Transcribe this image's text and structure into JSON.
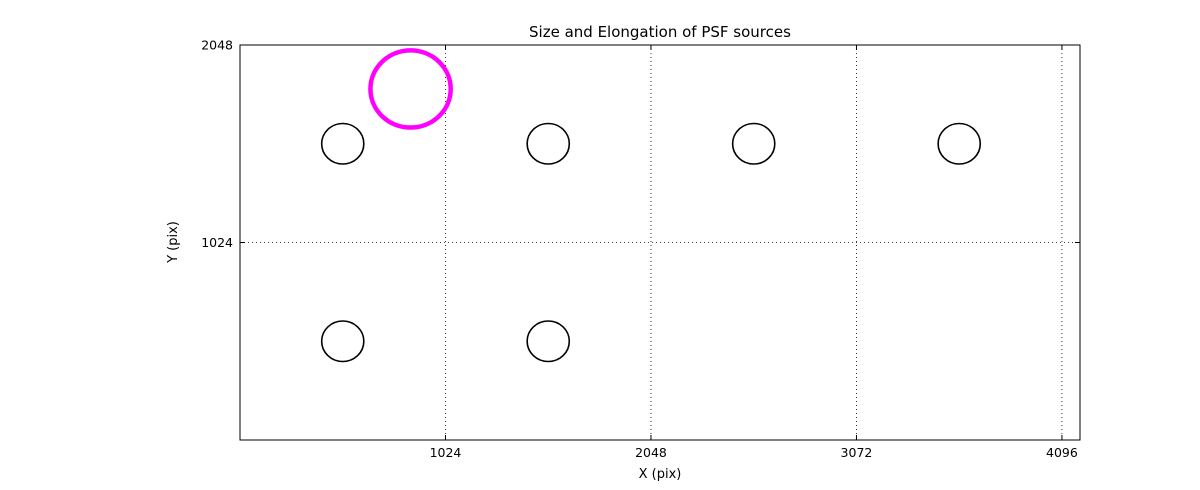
{
  "chart_data": {
    "type": "scatter",
    "title": "Size and Elongation of PSF sources",
    "xlabel": "X (pix)",
    "ylabel": "Y (pix)",
    "xlim": [
      0,
      4186
    ],
    "ylim": [
      0,
      2048
    ],
    "xticks": [
      1024,
      2048,
      3072,
      4096
    ],
    "yticks": [
      1024,
      2048
    ],
    "grid": true,
    "grid_style": "dotted",
    "legend": "none",
    "colors": {
      "axes": "#000000",
      "normal_source": "#000000",
      "elongated_source": "#ff00ff"
    },
    "sources": [
      {
        "x": 512,
        "y": 1536,
        "r": 105,
        "color": "#000000",
        "linewidth": 1.6
      },
      {
        "x": 1536,
        "y": 1536,
        "r": 105,
        "color": "#000000",
        "linewidth": 1.6
      },
      {
        "x": 2560,
        "y": 1536,
        "r": 105,
        "color": "#000000",
        "linewidth": 1.6
      },
      {
        "x": 3584,
        "y": 1536,
        "r": 105,
        "color": "#000000",
        "linewidth": 1.6
      },
      {
        "x": 512,
        "y": 512,
        "r": 105,
        "color": "#000000",
        "linewidth": 1.6
      },
      {
        "x": 1536,
        "y": 512,
        "r": 105,
        "color": "#000000",
        "linewidth": 1.6
      },
      {
        "x": 850,
        "y": 1820,
        "r": 200,
        "color": "#ff00ff",
        "linewidth": 4.5
      }
    ]
  }
}
